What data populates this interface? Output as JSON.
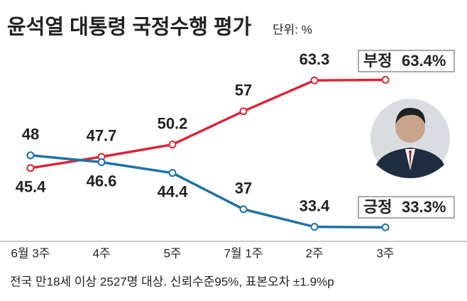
{
  "chart_data": {
    "type": "line",
    "title": "윤석열 대통령 국정수행 평가",
    "subtitle": "단위: %",
    "note": "전국 만18세 이상 2527명 대상. 신뢰수준95%, 표본오차 ±1.9%p",
    "categories": [
      "6월 3주",
      "4주",
      "5주",
      "7월 1주",
      "2주",
      "3주"
    ],
    "series": [
      {
        "name": "부정",
        "color": "#d8263a",
        "values": [
          45.4,
          47.7,
          50.2,
          57,
          63.3,
          63.4
        ],
        "value_labels": [
          "45.4",
          "47.7",
          "50.2",
          "57",
          "63.3",
          "63.4%"
        ]
      },
      {
        "name": "긍정",
        "color": "#1d72a3",
        "values": [
          48,
          46.6,
          44.4,
          37,
          33.4,
          33.3
        ],
        "value_labels": [
          "48",
          "46.6",
          "44.4",
          "37",
          "33.4",
          "33.3%"
        ]
      }
    ]
  }
}
